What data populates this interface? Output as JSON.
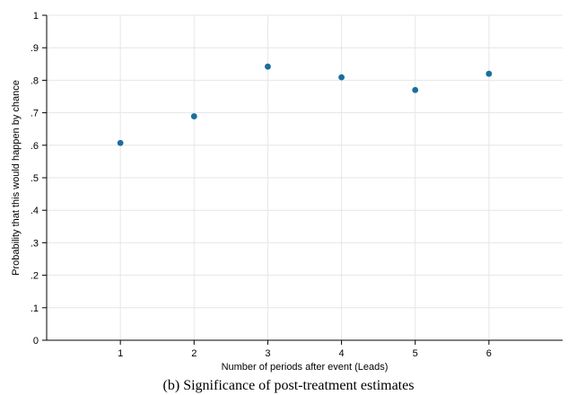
{
  "caption": "(b) Significance of post-treatment estimates",
  "chart_data": {
    "type": "scatter",
    "xlabel": "Number of periods after event (Leads)",
    "ylabel": "Probability that this would happen by chance",
    "xlim": [
      0,
      7
    ],
    "ylim": [
      0,
      1
    ],
    "x_ticks": [
      1,
      2,
      3,
      4,
      5,
      6
    ],
    "y_ticks": [
      0,
      0.1,
      0.2,
      0.3,
      0.4,
      0.5,
      0.6,
      0.7,
      0.8,
      0.9,
      1
    ],
    "y_tick_labels": [
      "0",
      ".1",
      ".2",
      ".3",
      ".4",
      ".5",
      ".6",
      ".7",
      ".8",
      ".9",
      "1"
    ],
    "grid": true,
    "marker_color": "#1a6e9e",
    "x": [
      1,
      2,
      3,
      4,
      5,
      6
    ],
    "y": [
      0.607,
      0.689,
      0.842,
      0.809,
      0.77,
      0.82
    ]
  }
}
